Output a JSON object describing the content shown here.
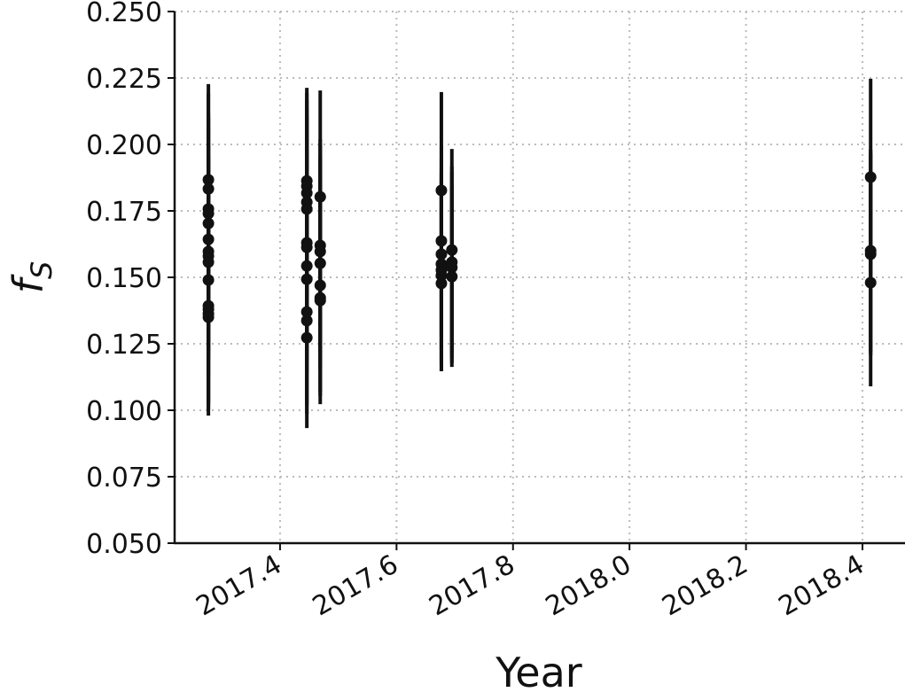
{
  "chart_data": {
    "type": "errorbar",
    "xlabel": "Year",
    "ylabel": "f",
    "ylabel_sub": "S",
    "color": "#111111",
    "x": [
      2017.277,
      2017.277,
      2017.277,
      2017.277,
      2017.277,
      2017.277,
      2017.277,
      2017.277,
      2017.277,
      2017.277,
      2017.277,
      2017.277,
      2017.277,
      2017.277,
      2017.446,
      2017.446,
      2017.446,
      2017.446,
      2017.446,
      2017.446,
      2017.446,
      2017.446,
      2017.446,
      2017.446,
      2017.446,
      2017.446,
      2017.469,
      2017.469,
      2017.469,
      2017.469,
      2017.469,
      2017.469,
      2017.469,
      2017.677,
      2017.677,
      2017.677,
      2017.677,
      2017.677,
      2017.677,
      2017.677,
      2017.695,
      2017.695,
      2017.695,
      2017.695,
      2018.414,
      2018.414,
      2018.414,
      2018.414
    ],
    "values": [
      0.1867,
      0.1833,
      0.1757,
      0.174,
      0.1703,
      0.1643,
      0.1597,
      0.158,
      0.1557,
      0.149,
      0.1393,
      0.138,
      0.1363,
      0.135,
      0.1863,
      0.1843,
      0.1817,
      0.1783,
      0.1757,
      0.163,
      0.1613,
      0.1543,
      0.1493,
      0.137,
      0.1337,
      0.1273,
      0.1803,
      0.162,
      0.1597,
      0.1553,
      0.147,
      0.1423,
      0.1413,
      0.1827,
      0.1637,
      0.1587,
      0.155,
      0.1527,
      0.1507,
      0.1477,
      0.1603,
      0.1557,
      0.1537,
      0.1503,
      0.1877,
      0.16,
      0.1587,
      0.148
    ],
    "errors": [
      0.036,
      0.036,
      0.036,
      0.036,
      0.036,
      0.036,
      0.036,
      0.036,
      0.036,
      0.036,
      0.036,
      0.036,
      0.036,
      0.037,
      0.035,
      0.035,
      0.035,
      0.035,
      0.035,
      0.035,
      0.035,
      0.035,
      0.035,
      0.035,
      0.035,
      0.034,
      0.04,
      0.04,
      0.04,
      0.04,
      0.04,
      0.04,
      0.036,
      0.037,
      0.036,
      0.036,
      0.036,
      0.036,
      0.036,
      0.033,
      0.038,
      0.036,
      0.036,
      0.034,
      0.037,
      0.038,
      0.038,
      0.039
    ],
    "xlim": [
      2017.219,
      2018.473
    ],
    "ylim": [
      0.05,
      0.25
    ],
    "xticks": [
      2017.4,
      2017.6,
      2017.8,
      {
        "value": 2018.0,
        "label": "2018.0"
      },
      2018.2,
      2018.4
    ],
    "yticks": [
      {
        "value": 0.05,
        "label": "0.050"
      },
      0.075,
      {
        "value": 0.1,
        "label": "0.100"
      },
      0.125,
      {
        "value": 0.15,
        "label": "0.150"
      },
      0.175,
      {
        "value": 0.2,
        "label": "0.200"
      },
      0.225,
      {
        "value": 0.25,
        "label": "0.250"
      }
    ],
    "grid": true
  }
}
